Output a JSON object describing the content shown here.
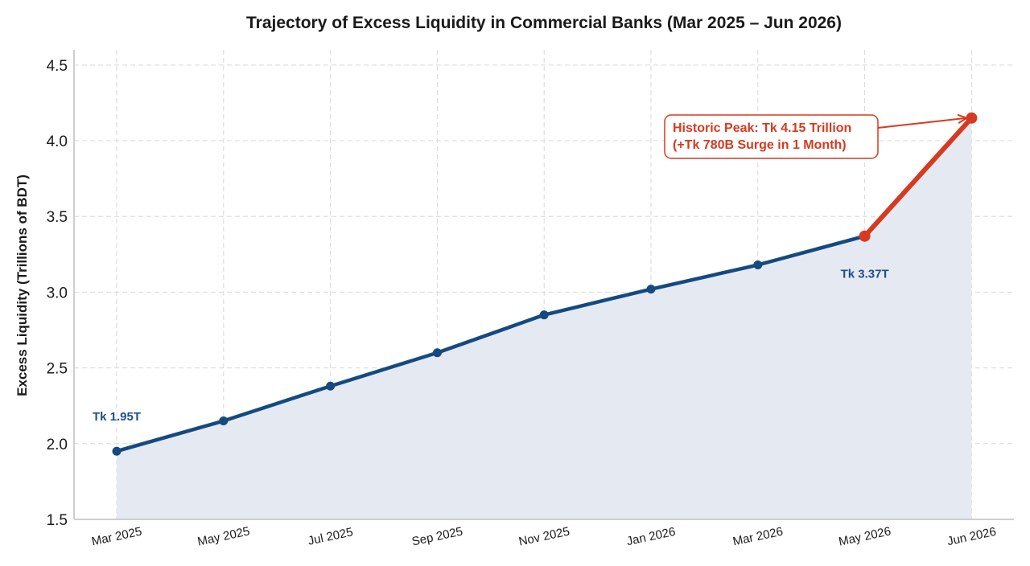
{
  "chart_data": {
    "type": "line",
    "title": "Trajectory of Excess Liquidity in Commercial Banks (Mar 2025 – Jun 2026)",
    "ylabel": "Excess Liquidity (Trillions of BDT)",
    "xlabel": "",
    "ylim": [
      1.5,
      4.6
    ],
    "yticks": [
      "1.5",
      "2.0",
      "2.5",
      "3.0",
      "3.5",
      "4.0",
      "4.5"
    ],
    "grid": true,
    "categories": [
      "Mar 2025",
      "May 2025",
      "Jul 2025",
      "Sep 2025",
      "Nov 2025",
      "Jan 2026",
      "Mar 2026",
      "May 2026",
      "Jun 2026"
    ],
    "values": [
      1.95,
      2.15,
      2.38,
      2.6,
      2.85,
      3.02,
      3.18,
      3.37,
      4.15
    ],
    "data_labels": [
      {
        "index": 0,
        "text": "Tk 1.95T"
      },
      {
        "index": 7,
        "text": "Tk 3.37T"
      }
    ],
    "annotation": {
      "index": 8,
      "line1": "Historic Peak: Tk 4.15 Trillion",
      "line2": "(+Tk 780B Surge in 1 Month)"
    },
    "colors": {
      "main_line": "#154a80",
      "surge_line": "#d63a20",
      "fill": "#e5eaf2",
      "annotation_border": "#d63a20"
    }
  }
}
